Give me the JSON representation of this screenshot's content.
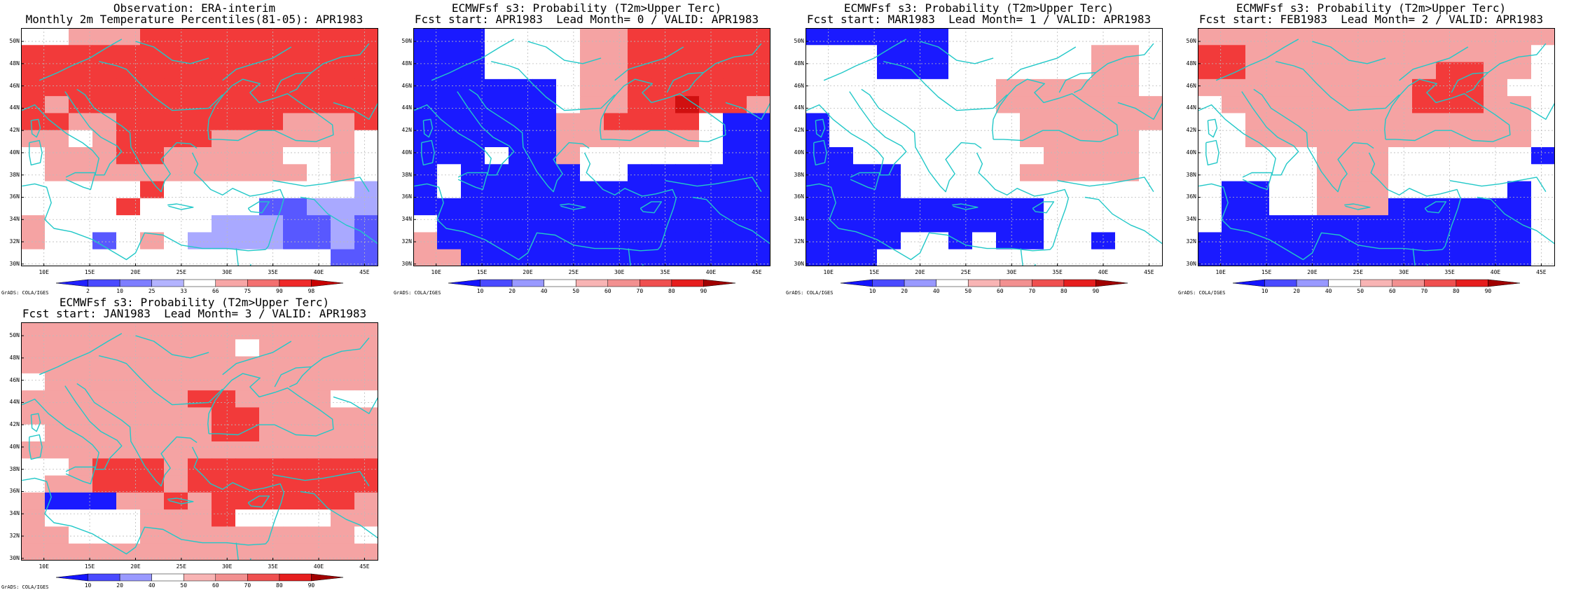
{
  "panels": [
    {
      "id": "obs",
      "title1": "Observation: ERA-interim",
      "title2": "Monthly 2m Temperature Percentiles(81-05): APR1983",
      "scale": "obs",
      "colorbar_labels": [
        "2",
        "10",
        "25",
        "33",
        "66",
        "75",
        "90",
        "98"
      ],
      "grid": [
        "NNAAACCCCCCCCCC",
        "CCCCCCCCCCCCCCC",
        "CCCCCCCCCCCCCCC",
        "CCCCCCCCCCCCCCC",
        "CACCCCCCCCCCCCC",
        "CCAACCCCCCCAAAC",
        "AANACCCCAAAAAAN",
        "NAAACCAAAAANNAN",
        "NAAAAAAAAAAANAN",
        "NNNNNCNNNNNNNNn",
        "NNNNCNNNNNbbnnn",
        "ANNNNNNNnnnbbnb",
        "ANNbNANnnnnbbnb",
        "NNNNNNNNNNNNNbb"
      ]
    },
    {
      "id": "lead0",
      "title1": "ECMWFsf s3: Probability (T2m>Upper Terc)",
      "title2": "Fcst start: APR1983  Lead Month= 0 / VALID: APR1983",
      "scale": "prob",
      "colorbar_labels": [
        "10",
        "20",
        "40",
        "50",
        "60",
        "70",
        "80",
        "90"
      ],
      "grid": [
        "BBBNNNNAACCCCCC",
        "BBBNNNNAACCCCCC",
        "BBBNNNNAACCCCCC",
        "BBBBBBNAACCCCCC",
        "BBBBBBNAACCDCCA",
        "BBBBBBAACCCCNBB",
        "BBBBBBAAAAAANBB",
        "BBBNBBANNNNNNBB",
        "BNBBBBBNNBBBBBB",
        "BNBBBBBBBBBBBBB",
        "BBBBBBBBBBBBBBB",
        "NBBBBBBBBBBBBBB",
        "ABBBBBBBBBBBBBB",
        "AABBBBBBBBBBBBB"
      ]
    },
    {
      "id": "lead1",
      "title1": "ECMWFsf s3: Probability (T2m>Upper Terc)",
      "title2": "Fcst start: MAR1983  Lead Month= 1 / VALID: APR1983",
      "scale": "prob",
      "colorbar_labels": [
        "10",
        "20",
        "40",
        "50",
        "60",
        "70",
        "80",
        "90"
      ],
      "grid": [
        "BBBBBBNNNNNNNNN",
        "NNNBBBNNNNNNAAN",
        "NNNBBBNNNNNNAAN",
        "NNNNNNNNAAAAAAN",
        "NNNNNNNNAAAAAAA",
        "BNNNNNNNNAAAAAA",
        "BNNNNNNNNAAAAAN",
        "BBNNNNNNNNAAAAN",
        "BBBBNNNNNAAAAAN",
        "BBBBNNNNNNNNNNN",
        "BBBBBBBBBBNNNNN",
        "BBBBBBBBBBNNNNN",
        "BBBBNNBNBBNNBNN",
        "BBBNNNNNNNNNNNN"
      ]
    },
    {
      "id": "lead2",
      "title1": "ECMWFsf s3: Probability (T2m>Upper Terc)",
      "title2": "Fcst start: FEB1983  Lead Month= 2 / VALID: APR1983",
      "scale": "prob",
      "colorbar_labels": [
        "10",
        "20",
        "40",
        "50",
        "60",
        "70",
        "80",
        "90"
      ],
      "grid": [
        "AAAAAAAAAAAAAAA",
        "CCAAAAAAAAAAAAN",
        "CCAAAAAAAACCAAN",
        "AAAAAAAAACCCANN",
        "NAAAAAAAACCCAAN",
        "NNAAAAAAAAAAAAN",
        "NNAAAAAAAAAAAAN",
        "NNNNNAAANNNNNNB",
        "NNNNNAAANNNNNNN",
        "NBBNNAAANNNNNBN",
        "NBBNNAAABBBBBBN",
        "NBBBBBBBBBBBBBN",
        "BBBBBBBBBBBBBBN",
        "BBBBBBBBBBBBBBN"
      ]
    },
    {
      "id": "lead3",
      "title1": "ECMWFsf s3: Probability (T2m>Upper Terc)",
      "title2": "Fcst start: JAN1983  Lead Month= 3 / VALID: APR1983",
      "scale": "prob",
      "colorbar_labels": [
        "10",
        "20",
        "40",
        "50",
        "60",
        "70",
        "80",
        "90"
      ],
      "grid": [
        "AAAAAAAAAAAAAAA",
        "AAAAAAAAANAAAAA",
        "AAAAAAAAAAAAAAA",
        "NAAAAAAAAAAAAAA",
        "AAAAAAACCAAAANN",
        "AAAAAAAACCAAAAA",
        "NAAAAAAACCAAAAA",
        "AAAAAAAAAAAAAAA",
        "NNACCCACCCCCCCC",
        "NAACCCACCCCCCCC",
        "ABBBAACACCCCCCA",
        "ANNNNAAACNNNNAA",
        "AANNNAAAAAAAAAN",
        "AAAAAAAAAAAAAAA"
      ]
    }
  ],
  "axis": {
    "lat_labels": [
      "50N",
      "48N",
      "46N",
      "44N",
      "42N",
      "40N",
      "38N",
      "36N",
      "34N",
      "32N",
      "30N"
    ],
    "lon_labels": [
      "10E",
      "15E",
      "20E",
      "25E",
      "30E",
      "35E",
      "40E",
      "45E"
    ],
    "lon_range": [
      7.5,
      46.5
    ],
    "lat_range": [
      29.8,
      51.2
    ]
  },
  "credit": "GrADS: COLA/IGES",
  "palette": {
    "obs": [
      "#2020ff",
      "#4a4aff",
      "#7d7dff",
      "#b3b3ff",
      "#ffffff",
      "#f7a6a6",
      "#f37070",
      "#ef2a2a",
      "#c80000"
    ],
    "prob": [
      "#1414ff",
      "#4a4aff",
      "#9999ff",
      "#ffffff",
      "#f8b4b4",
      "#f29090",
      "#ef5050",
      "#e61e1e",
      "#a00000"
    ]
  },
  "cell_colors": {
    "B": "#1a1aff",
    "b": "#5858ff",
    "n": "#a9a9ff",
    "N": "#ffffff",
    "A": "#f5a3a3",
    "C": "#f23a3a",
    "D": "#d01010"
  },
  "coast_color": "#22c8c8"
}
